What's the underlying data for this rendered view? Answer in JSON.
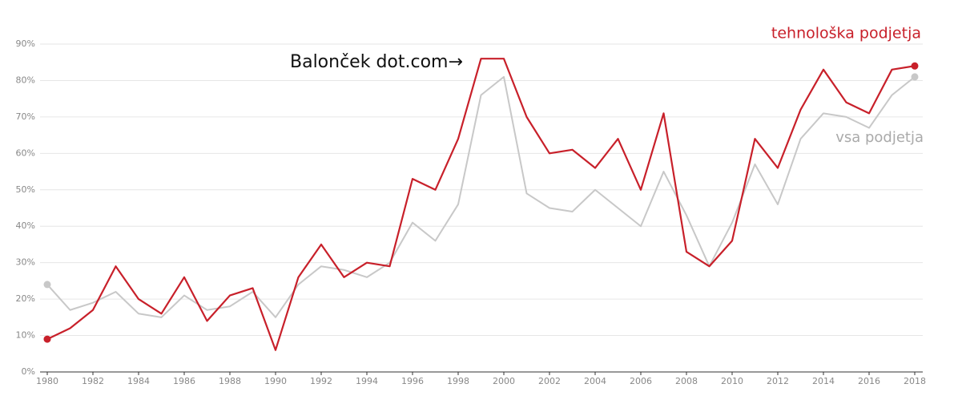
{
  "chart_data": {
    "type": "line",
    "annotation": "Balonček dot.com→",
    "x": [
      1980,
      1981,
      1982,
      1983,
      1984,
      1985,
      1986,
      1987,
      1988,
      1989,
      1990,
      1991,
      1992,
      1993,
      1994,
      1995,
      1996,
      1997,
      1998,
      1999,
      2000,
      2001,
      2002,
      2003,
      2004,
      2005,
      2006,
      2007,
      2008,
      2009,
      2010,
      2011,
      2012,
      2013,
      2014,
      2015,
      2016,
      2017,
      2018
    ],
    "series": [
      {
        "name": "vsa podjetja",
        "color": "#c8c8c8",
        "values": [
          24,
          17,
          19,
          22,
          16,
          15,
          21,
          17,
          18,
          22,
          15,
          24,
          29,
          28,
          26,
          30,
          41,
          36,
          46,
          76,
          81,
          49,
          45,
          44,
          50,
          45,
          40,
          55,
          43,
          29,
          41,
          57,
          46,
          64,
          71,
          70,
          67,
          76,
          81
        ]
      },
      {
        "name": "tehnološka podjetja",
        "color": "#c8202a",
        "values": [
          9,
          12,
          17,
          29,
          20,
          16,
          26,
          14,
          21,
          23,
          6,
          26,
          35,
          26,
          30,
          29,
          53,
          50,
          64,
          86,
          86,
          70,
          60,
          61,
          56,
          64,
          50,
          71,
          33,
          29,
          36,
          64,
          56,
          72,
          83,
          74,
          71,
          83,
          84
        ]
      }
    ],
    "xlim": [
      1980,
      2018
    ],
    "xticks": [
      1980,
      1982,
      1984,
      1986,
      1988,
      1990,
      1992,
      1994,
      1996,
      1998,
      2000,
      2002,
      2004,
      2006,
      2008,
      2010,
      2012,
      2014,
      2016,
      2018
    ],
    "ylim": [
      0,
      90
    ],
    "yticks": [
      {
        "value": 0,
        "label": "0%"
      },
      {
        "value": 10,
        "label": "10%"
      },
      {
        "value": 20,
        "label": "20%"
      },
      {
        "value": 30,
        "label": "30%"
      },
      {
        "value": 40,
        "label": "40%"
      },
      {
        "value": 50,
        "label": "50%"
      },
      {
        "value": 60,
        "label": "60%"
      },
      {
        "value": 70,
        "label": "70%"
      },
      {
        "value": 80,
        "label": "80%"
      },
      {
        "value": 90,
        "label": "90%"
      }
    ],
    "grid": true
  }
}
